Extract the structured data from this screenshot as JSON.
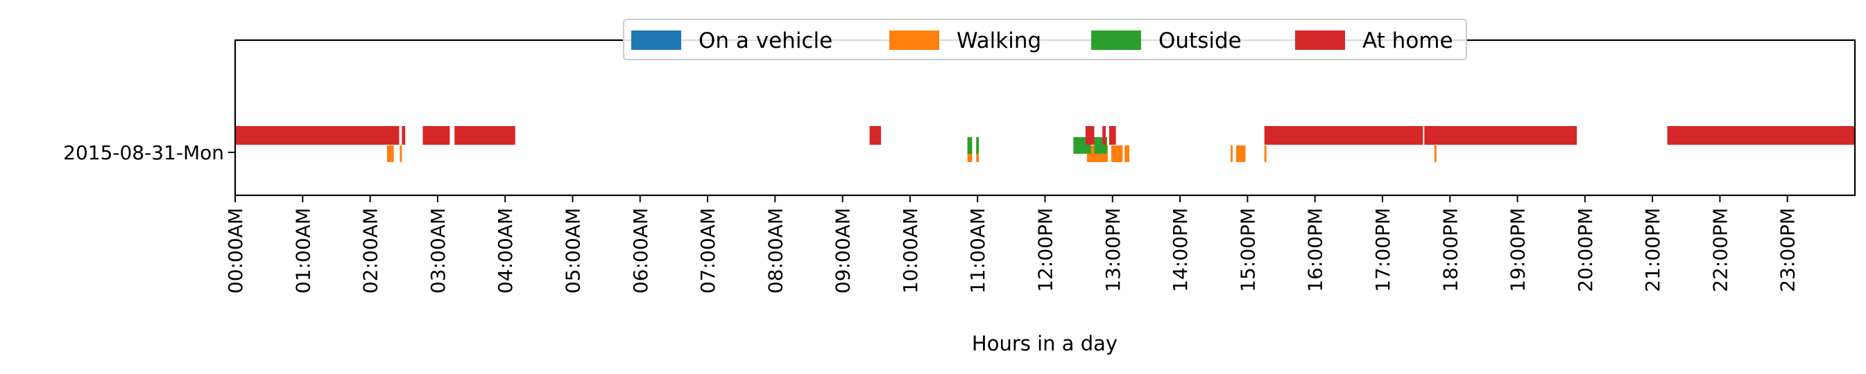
{
  "chart_data": {
    "type": "timeline",
    "xlabel": "Hours in a day",
    "xlim": [
      0,
      24
    ],
    "category": "2015-08-31-Mon",
    "x_ticks": [
      "00:00AM",
      "01:00AM",
      "02:00AM",
      "03:00AM",
      "04:00AM",
      "05:00AM",
      "06:00AM",
      "07:00AM",
      "08:00AM",
      "09:00AM",
      "10:00AM",
      "11:00AM",
      "12:00PM",
      "13:00PM",
      "14:00PM",
      "15:00PM",
      "16:00PM",
      "17:00PM",
      "18:00PM",
      "19:00PM",
      "20:00PM",
      "21:00PM",
      "22:00PM",
      "23:00PM"
    ],
    "legend_position": "top-center",
    "series": [
      {
        "name": "On a vehicle",
        "color": "#1f77b4",
        "lane": 0,
        "intervals": []
      },
      {
        "name": "Walking",
        "color": "#ff7f0e",
        "lane": 0,
        "intervals": [
          [
            2.25,
            2.35
          ],
          [
            2.44,
            2.47
          ],
          [
            10.85,
            10.92
          ],
          [
            10.98,
            11.02
          ],
          [
            12.62,
            12.93
          ],
          [
            12.98,
            13.15
          ],
          [
            13.18,
            13.25
          ],
          [
            14.75,
            14.78
          ],
          [
            14.83,
            14.97
          ],
          [
            15.25,
            15.28
          ],
          [
            17.77,
            17.8
          ]
        ]
      },
      {
        "name": "Outside",
        "color": "#2ca02c",
        "lane": 1,
        "intervals": [
          [
            10.85,
            10.92
          ],
          [
            10.98,
            11.02
          ],
          [
            12.42,
            12.68
          ],
          [
            12.73,
            12.92
          ]
        ]
      },
      {
        "name": "At home",
        "color": "#d62728",
        "lane": 2,
        "intervals": [
          [
            0,
            2.43
          ],
          [
            2.47,
            2.52
          ],
          [
            2.78,
            3.18
          ],
          [
            3.25,
            4.15
          ],
          [
            9.4,
            9.57
          ],
          [
            12.6,
            12.73
          ],
          [
            12.85,
            12.9
          ],
          [
            12.95,
            13.05
          ],
          [
            15.25,
            17.6
          ],
          [
            17.62,
            19.88
          ],
          [
            21.22,
            24
          ]
        ]
      }
    ]
  }
}
